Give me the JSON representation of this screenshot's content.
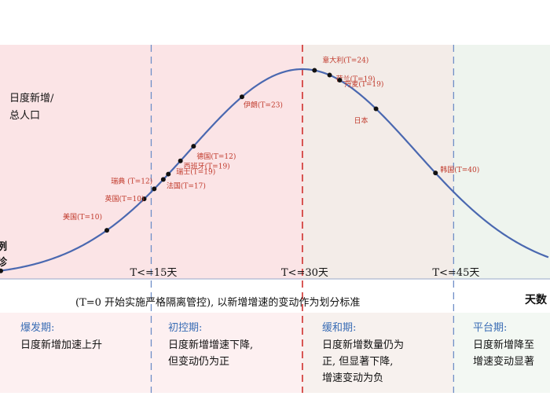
{
  "chart_data": {
    "type": "line",
    "title": "",
    "ylabel": "日度新增/总人口",
    "y_axis_fragment": "例诊",
    "xlabel": "天数",
    "grid": false,
    "colors": {
      "curve": "#4a68b0",
      "point": "#111111",
      "country_label": "#c0392b",
      "divider_30": "#d0312d",
      "divider": "#6f8fc8",
      "phase_burst_bg": "#fbe4e6",
      "phase_control_bg": "#fbe4e6",
      "phase_ease_bg": "#f3ece8",
      "phase_plateau_bg": "#eef4ee",
      "phase_title": "#3a6db5",
      "text": "#111111"
    },
    "dividers": [
      {
        "t": 15,
        "label": "T<=15天"
      },
      {
        "t": 30,
        "label": "T<=30天"
      },
      {
        "t": 45,
        "label": "T<=45天"
      }
    ],
    "points": [
      {
        "label": "美国(T=10)",
        "t": 10.6
      },
      {
        "label": "英国(T=10)",
        "t": 14.3
      },
      {
        "label": "瑞典 (T=12)",
        "t": 15.3
      },
      {
        "label": "法国(T=17)",
        "t": 16.2
      },
      {
        "label": "瑞士(T=19)",
        "t": 16.7
      },
      {
        "label": "西班牙(T=19)",
        "t": 17.9
      },
      {
        "label": "德国(T=12)",
        "t": 19.2
      },
      {
        "label": "伊朗(T=23)",
        "t": 24.0
      },
      {
        "label": "意大利(T=24)",
        "t": 31.2
      },
      {
        "label": "荷兰(T=19)",
        "t": 32.7
      },
      {
        "label": "丹麦(T=19)",
        "t": 33.7
      },
      {
        "label": "日本",
        "t": 37.3
      },
      {
        "label": "韩国(T=40)",
        "t": 43.2
      }
    ],
    "footnote": "(T=0 开始实施严格隔离管控), 以新增增速的变动作为划分标准",
    "phases": [
      {
        "title": "爆发期:",
        "desc": [
          "日度新增加速上升"
        ]
      },
      {
        "title": "初控期:",
        "desc": [
          "日度新增增速下降,",
          "但变动仍为正"
        ]
      },
      {
        "title": "缓和期:",
        "desc": [
          "日度新增数量仍为",
          "正, 但显著下降,",
          "增速变动为负"
        ]
      },
      {
        "title": "平台期:",
        "desc": [
          "日度新增降至",
          "增速变动显著"
        ]
      }
    ]
  }
}
